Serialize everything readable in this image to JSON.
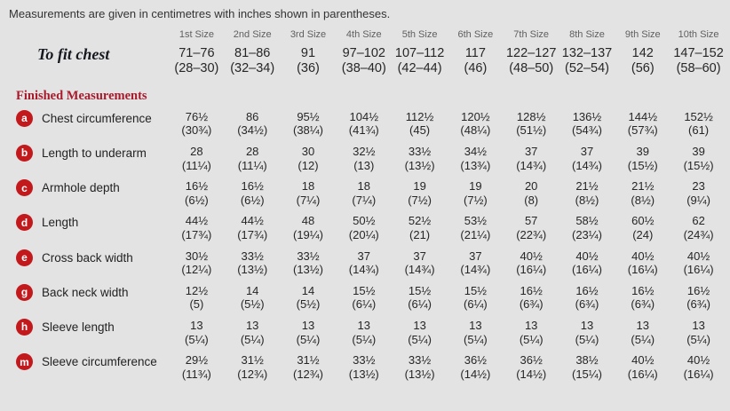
{
  "title": "Measurements are given in centimetres with inches shown in parentheses.",
  "size_headers": [
    "1st Size",
    "2nd Size",
    "3rd Size",
    "4th Size",
    "5th Size",
    "6th Size",
    "7th Size",
    "8th Size",
    "9th Size",
    "10th Size"
  ],
  "to_fit_chest": {
    "label": "To fit chest",
    "cm": [
      "71–76",
      "81–86",
      "91",
      "97–102",
      "107–112",
      "117",
      "122–127",
      "132–137",
      "142",
      "147–152"
    ],
    "in": [
      "(28–30)",
      "(32–34)",
      "(36)",
      "(38–40)",
      "(42–44)",
      "(46)",
      "(48–50)",
      "(52–54)",
      "(56)",
      "(58–60)"
    ]
  },
  "section_heading": "Finished Measurements",
  "rows": [
    {
      "key": "a",
      "label": "Chest circumference",
      "cm": [
        "76½",
        "86",
        "95½",
        "104½",
        "112½",
        "120½",
        "128½",
        "136½",
        "144½",
        "152½"
      ],
      "in": [
        "(30¾)",
        "(34½)",
        "(38¼)",
        "(41¾)",
        "(45)",
        "(48¼)",
        "(51½)",
        "(54¾)",
        "(57¾)",
        "(61)"
      ]
    },
    {
      "key": "b",
      "label": "Length to underarm",
      "cm": [
        "28",
        "28",
        "30",
        "32½",
        "33½",
        "34½",
        "37",
        "37",
        "39",
        "39"
      ],
      "in": [
        "(11¼)",
        "(11¼)",
        "(12)",
        "(13)",
        "(13½)",
        "(13¾)",
        "(14¾)",
        "(14¾)",
        "(15½)",
        "(15½)"
      ]
    },
    {
      "key": "c",
      "label": "Armhole depth",
      "cm": [
        "16½",
        "16½",
        "18",
        "18",
        "19",
        "19",
        "20",
        "21½",
        "21½",
        "23"
      ],
      "in": [
        "(6½)",
        "(6½)",
        "(7¼)",
        "(7¼)",
        "(7½)",
        "(7½)",
        "(8)",
        "(8½)",
        "(8½)",
        "(9¼)"
      ]
    },
    {
      "key": "d",
      "label": "Length",
      "cm": [
        "44½",
        "44½",
        "48",
        "50½",
        "52½",
        "53½",
        "57",
        "58½",
        "60½",
        "62"
      ],
      "in": [
        "(17¾)",
        "(17¾)",
        "(19¼)",
        "(20¼)",
        "(21)",
        "(21¼)",
        "(22¾)",
        "(23¼)",
        "(24)",
        "(24¾)"
      ]
    },
    {
      "key": "e",
      "label": "Cross back width",
      "cm": [
        "30½",
        "33½",
        "33½",
        "37",
        "37",
        "37",
        "40½",
        "40½",
        "40½",
        "40½"
      ],
      "in": [
        "(12¼)",
        "(13½)",
        "(13½)",
        "(14¾)",
        "(14¾)",
        "(14¾)",
        "(16¼)",
        "(16¼)",
        "(16¼)",
        "(16¼)"
      ]
    },
    {
      "key": "g",
      "label": "Back neck width",
      "cm": [
        "12½",
        "14",
        "14",
        "15½",
        "15½",
        "15½",
        "16½",
        "16½",
        "16½",
        "16½"
      ],
      "in": [
        "(5)",
        "(5½)",
        "(5½)",
        "(6¼)",
        "(6¼)",
        "(6¼)",
        "(6¾)",
        "(6¾)",
        "(6¾)",
        "(6¾)"
      ]
    },
    {
      "key": "h",
      "label": "Sleeve length",
      "cm": [
        "13",
        "13",
        "13",
        "13",
        "13",
        "13",
        "13",
        "13",
        "13",
        "13"
      ],
      "in": [
        "(5¼)",
        "(5¼)",
        "(5¼)",
        "(5¼)",
        "(5¼)",
        "(5¼)",
        "(5¼)",
        "(5¼)",
        "(5¼)",
        "(5¼)"
      ]
    },
    {
      "key": "m",
      "label": "Sleeve circumference",
      "cm": [
        "29½",
        "31½",
        "31½",
        "33½",
        "33½",
        "36½",
        "36½",
        "38½",
        "40½",
        "40½"
      ],
      "in": [
        "(11¾)",
        "(12¾)",
        "(12¾)",
        "(13½)",
        "(13½)",
        "(14½)",
        "(14½)",
        "(15¼)",
        "(16¼)",
        "(16¼)"
      ]
    }
  ],
  "colors": {
    "background": "#e3e3e3",
    "badge_red": "#c2191d",
    "heading_red": "#a81a2b",
    "text_dark": "#262626",
    "header_gray": "#5f5f5f"
  }
}
